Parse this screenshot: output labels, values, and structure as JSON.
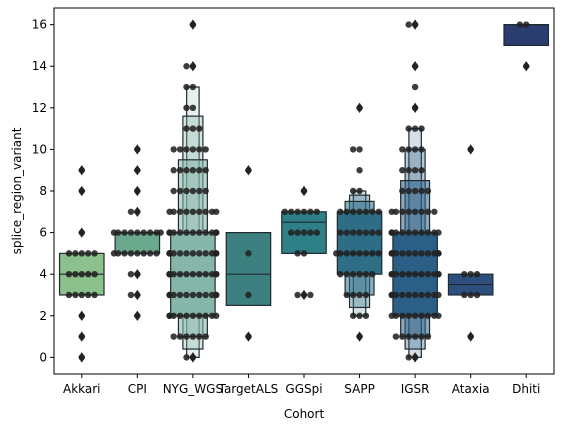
{
  "chart_data": {
    "type": "boxplot",
    "xlabel": "Cohort",
    "ylabel": "splice_region_variant",
    "ylim": [
      -0.8,
      16.8
    ],
    "yticks": [
      0,
      2,
      4,
      6,
      8,
      10,
      12,
      14,
      16
    ],
    "grid": false,
    "categories": [
      "Akkari",
      "CPI",
      "NYG_WGS",
      "TargetALS",
      "GGSpi",
      "SAPP",
      "IGSR",
      "Ataxia",
      "Dhiti"
    ],
    "boxes": [
      {
        "name": "Akkari",
        "q1": 3,
        "median": 4,
        "q3": 5,
        "whisker_low": 3,
        "whisker_high": 5,
        "color": "#8cc08c",
        "outliers": [
          0,
          1,
          2,
          6,
          8,
          9
        ],
        "points": [
          0,
          1,
          2,
          3,
          3,
          3,
          3,
          3,
          4,
          4,
          4,
          4,
          4,
          5,
          5,
          5,
          5,
          5,
          6,
          8,
          9
        ]
      },
      {
        "name": "CPI",
        "q1": 5,
        "median": 6,
        "q3": 6,
        "whisker_low": 5,
        "whisker_high": 6,
        "color": "#6aa98e",
        "outliers": [
          2,
          3,
          4,
          7,
          8,
          9,
          10
        ],
        "points": [
          2,
          3,
          3,
          4,
          4,
          5,
          5,
          5,
          5,
          5,
          5,
          5,
          5,
          6,
          6,
          6,
          6,
          6,
          6,
          6,
          6,
          6,
          7,
          7,
          8,
          9,
          10
        ]
      },
      {
        "name": "NYG_WGS",
        "q1": 2,
        "median": 4,
        "q3": 6,
        "whisker_low": 0,
        "whisker_high": 13,
        "color": "#86b6aa",
        "letter_values": true,
        "outliers": [
          0,
          14,
          16
        ],
        "points": [
          0,
          0,
          1,
          1,
          1,
          1,
          1,
          1,
          2,
          2,
          2,
          2,
          2,
          2,
          2,
          2,
          2,
          2,
          3,
          3,
          3,
          3,
          3,
          3,
          3,
          3,
          3,
          3,
          3,
          4,
          4,
          4,
          4,
          4,
          4,
          4,
          4,
          4,
          4,
          4,
          4,
          5,
          5,
          5,
          5,
          5,
          5,
          5,
          5,
          5,
          5,
          5,
          5,
          6,
          6,
          6,
          6,
          6,
          6,
          6,
          6,
          6,
          6,
          6,
          7,
          7,
          7,
          7,
          7,
          7,
          7,
          7,
          7,
          8,
          8,
          8,
          8,
          8,
          8,
          9,
          9,
          9,
          9,
          9,
          9,
          10,
          10,
          10,
          10,
          10,
          10,
          11,
          11,
          11,
          12,
          12,
          13,
          13,
          14,
          14,
          16
        ]
      },
      {
        "name": "TargetALS",
        "q1": 2.5,
        "median": 4,
        "q3": 6,
        "whisker_low": 2.5,
        "whisker_high": 6,
        "color": "#3d8080",
        "outliers": [
          1,
          9
        ],
        "points": [
          1,
          3,
          5,
          9
        ]
      },
      {
        "name": "GGSpi",
        "q1": 5,
        "median": 6.5,
        "q3": 7,
        "whisker_low": 5,
        "whisker_high": 7,
        "color": "#2f7f89",
        "outliers": [
          3,
          8
        ],
        "points": [
          3,
          3,
          3,
          5,
          5,
          6,
          6,
          6,
          6,
          6,
          7,
          7,
          7,
          7,
          7,
          7,
          8
        ]
      },
      {
        "name": "SAPP",
        "q1": 4,
        "median": 5,
        "q3": 7,
        "whisker_low": 2,
        "whisker_high": 8,
        "color": "#2d6e86",
        "letter_values": true,
        "outliers": [
          1,
          12
        ],
        "points": [
          1,
          2,
          2,
          2,
          3,
          3,
          3,
          3,
          4,
          4,
          4,
          4,
          4,
          4,
          5,
          5,
          5,
          5,
          5,
          5,
          5,
          5,
          6,
          6,
          6,
          6,
          6,
          6,
          6,
          7,
          7,
          7,
          7,
          7,
          7,
          7,
          8,
          8,
          9,
          10,
          10,
          12
        ]
      },
      {
        "name": "IGSR",
        "q1": 2,
        "median": 4,
        "q3": 6,
        "whisker_low": 0,
        "whisker_high": 11,
        "color": "#2b5f85",
        "letter_values": true,
        "outliers": [
          0,
          12,
          14,
          16
        ],
        "points": [
          0,
          0,
          1,
          1,
          1,
          1,
          1,
          1,
          2,
          2,
          2,
          2,
          2,
          2,
          2,
          2,
          2,
          3,
          3,
          3,
          3,
          3,
          3,
          3,
          3,
          3,
          3,
          4,
          4,
          4,
          4,
          4,
          4,
          4,
          4,
          4,
          4,
          4,
          5,
          5,
          5,
          5,
          5,
          5,
          5,
          5,
          5,
          5,
          5,
          6,
          6,
          6,
          6,
          6,
          6,
          6,
          6,
          6,
          6,
          7,
          7,
          7,
          7,
          7,
          7,
          7,
          7,
          8,
          8,
          8,
          8,
          8,
          9,
          9,
          9,
          9,
          10,
          10,
          10,
          10,
          11,
          11,
          11,
          12,
          13,
          14,
          16,
          16
        ]
      },
      {
        "name": "Ataxia",
        "q1": 3,
        "median": 3.5,
        "q3": 4,
        "whisker_low": 3,
        "whisker_high": 4,
        "color": "#2c4f7d",
        "outliers": [
          1,
          10
        ],
        "points": [
          1,
          3,
          3,
          3,
          4,
          4,
          4,
          10
        ]
      },
      {
        "name": "Dhiti",
        "q1": 15,
        "median": 16,
        "q3": 16,
        "whisker_low": 15,
        "whisker_high": 16,
        "color": "#2b3d6e",
        "outliers": [
          14
        ],
        "points": [
          14,
          16,
          16
        ]
      }
    ]
  }
}
